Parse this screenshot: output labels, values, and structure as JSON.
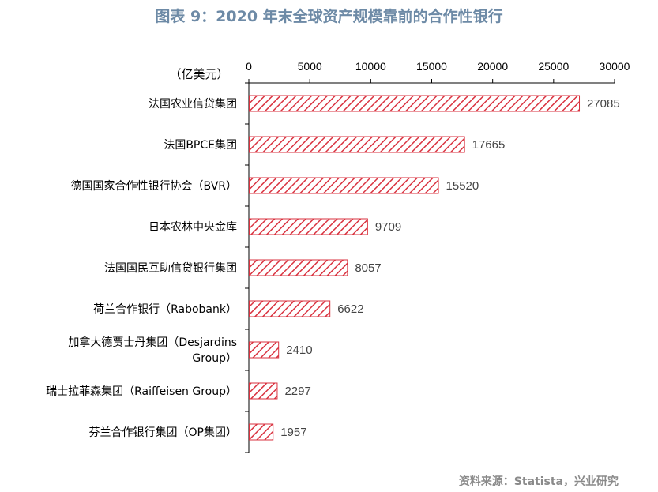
{
  "title": "图表 9：2020 年末全球资产规模靠前的合作性银行",
  "source": "资料来源：Statista，兴业研究",
  "colors": {
    "bar_stroke": "#d9323f",
    "bar_hatch": "#d9323f",
    "title": "#6d8aa6"
  },
  "chart_data": {
    "type": "bar",
    "orientation": "horizontal",
    "unit": "（亿美元）",
    "xlim": [
      0,
      30000
    ],
    "ticks": [
      "0",
      "5000",
      "10000",
      "15000",
      "20000",
      "25000",
      "30000"
    ],
    "tick_values": [
      0,
      5000,
      10000,
      15000,
      20000,
      25000,
      30000
    ],
    "axis_position": "top",
    "bar_pattern": "diagonal-hatch",
    "categories": [
      [
        "法国农业信贷集团"
      ],
      [
        "法国BPCE集团"
      ],
      [
        "德国国家合作性银行协会（BVR）"
      ],
      [
        "日本农林中央金库"
      ],
      [
        "法国国民互助信贷银行集团"
      ],
      [
        "荷兰合作银行（Rabobank）"
      ],
      [
        "加拿大德贾士丹集团（Desjardins",
        "Group）"
      ],
      [
        "瑞士拉菲森集团（Raiffeisen Group）"
      ],
      [
        "芬兰合作银行集团（OP集团）"
      ]
    ],
    "values": [
      27085,
      17665,
      15520,
      9709,
      8057,
      6622,
      2410,
      2297,
      1957
    ],
    "value_labels": [
      "27085",
      "17665",
      "15520",
      "9709",
      "8057",
      "6622",
      "2410",
      "2297",
      "1957"
    ]
  }
}
